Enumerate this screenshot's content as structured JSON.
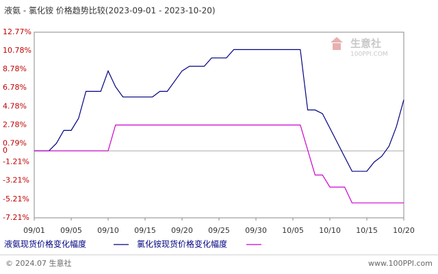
{
  "chart_data": {
    "type": "line",
    "title": "液氨 - 氯化铵 价格趋势比较(2023-09-01 - 2023-10-20)",
    "watermark": "生意社",
    "watermark_sub": "100PPI.COM",
    "footer_left": "© 2024.07 生意社",
    "footer_right": "www.100PPI.com",
    "xlim": [
      0,
      50
    ],
    "xticks": [
      {
        "value": 0,
        "label": "09/01"
      },
      {
        "value": 5,
        "label": "09/05"
      },
      {
        "value": 10,
        "label": "09/10"
      },
      {
        "value": 15,
        "label": "09/15"
      },
      {
        "value": 20,
        "label": "09/20"
      },
      {
        "value": 25,
        "label": "09/25"
      },
      {
        "value": 30,
        "label": "09/30"
      },
      {
        "value": 35,
        "label": "10/05"
      },
      {
        "value": 40,
        "label": "10/10"
      },
      {
        "value": 45,
        "label": "10/15"
      },
      {
        "value": 50,
        "label": "10/20"
      }
    ],
    "ylim": [
      -7.21,
      12.77
    ],
    "yticks": [
      {
        "value": 12.77,
        "label": "12.77%"
      },
      {
        "value": 10.78,
        "label": "10.78%"
      },
      {
        "value": 8.78,
        "label": "8.78%"
      },
      {
        "value": 6.78,
        "label": "6.78%"
      },
      {
        "value": 4.78,
        "label": "4.78%"
      },
      {
        "value": 2.78,
        "label": "2.78%"
      },
      {
        "value": 0.79,
        "label": "0.79%"
      },
      0,
      {
        "value": -1.21,
        "label": "-1.21%"
      },
      {
        "value": -3.21,
        "label": "-3.21%"
      },
      {
        "value": -5.21,
        "label": "-5.21%"
      },
      {
        "value": -7.21,
        "label": "-7.21%"
      }
    ],
    "zero_line": true,
    "series": [
      {
        "name": "液氨现货价格变化幅度",
        "color": "#000080",
        "x": [
          0,
          2,
          3,
          4,
          5,
          6,
          7,
          9,
          10,
          11,
          12,
          16,
          17,
          18,
          20,
          21,
          23,
          24,
          26,
          27,
          36,
          37,
          38,
          39,
          41,
          43,
          45,
          46,
          47,
          48,
          49,
          50
        ],
        "values": [
          0,
          0,
          0.8,
          2.2,
          2.2,
          3.5,
          6.4,
          6.4,
          8.6,
          6.9,
          5.8,
          5.8,
          6.4,
          6.4,
          8.6,
          9.1,
          9.1,
          10.0,
          10.0,
          10.9,
          10.9,
          4.4,
          4.4,
          4.0,
          0.9,
          -2.2,
          -2.2,
          -1.2,
          -0.6,
          0.5,
          2.6,
          5.5
        ]
      },
      {
        "name": "氯化铵现货价格变化幅度",
        "color": "#cc00cc",
        "x": [
          0,
          10,
          11,
          36,
          38,
          39,
          40,
          42,
          43,
          50
        ],
        "values": [
          0,
          0,
          2.78,
          2.78,
          -2.6,
          -2.6,
          -3.9,
          -3.9,
          -5.6,
          -5.6
        ]
      }
    ]
  }
}
